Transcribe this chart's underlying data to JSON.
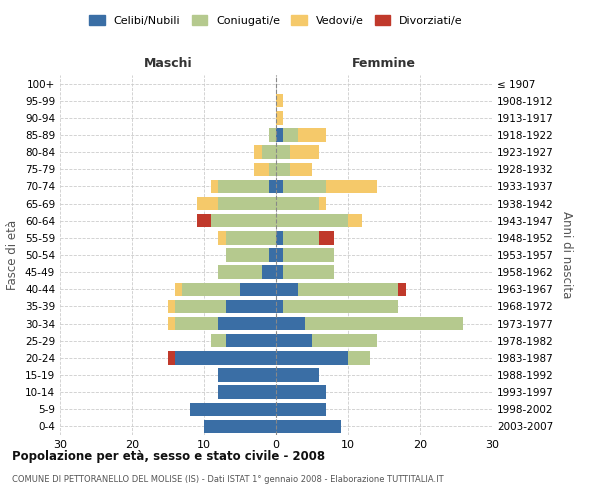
{
  "age_groups": [
    "0-4",
    "5-9",
    "10-14",
    "15-19",
    "20-24",
    "25-29",
    "30-34",
    "35-39",
    "40-44",
    "45-49",
    "50-54",
    "55-59",
    "60-64",
    "65-69",
    "70-74",
    "75-79",
    "80-84",
    "85-89",
    "90-94",
    "95-99",
    "100+"
  ],
  "birth_years": [
    "2003-2007",
    "1998-2002",
    "1993-1997",
    "1988-1992",
    "1983-1987",
    "1978-1982",
    "1973-1977",
    "1968-1972",
    "1963-1967",
    "1958-1962",
    "1953-1957",
    "1948-1952",
    "1943-1947",
    "1938-1942",
    "1933-1937",
    "1928-1932",
    "1923-1927",
    "1918-1922",
    "1913-1917",
    "1908-1912",
    "≤ 1907"
  ],
  "males": {
    "celibi": [
      10,
      12,
      8,
      8,
      14,
      7,
      8,
      7,
      5,
      2,
      1,
      0,
      0,
      0,
      1,
      0,
      0,
      0,
      0,
      0,
      0
    ],
    "coniugati": [
      0,
      0,
      0,
      0,
      0,
      2,
      6,
      7,
      8,
      6,
      6,
      7,
      9,
      8,
      7,
      1,
      2,
      1,
      0,
      0,
      0
    ],
    "vedovi": [
      0,
      0,
      0,
      0,
      0,
      0,
      1,
      1,
      1,
      0,
      0,
      1,
      0,
      3,
      1,
      2,
      1,
      0,
      0,
      0,
      0
    ],
    "divorziati": [
      0,
      0,
      0,
      0,
      1,
      0,
      0,
      0,
      0,
      0,
      0,
      0,
      2,
      0,
      0,
      0,
      0,
      0,
      0,
      0,
      0
    ]
  },
  "females": {
    "nubili": [
      9,
      7,
      7,
      6,
      10,
      5,
      4,
      1,
      3,
      1,
      1,
      1,
      0,
      0,
      1,
      0,
      0,
      1,
      0,
      0,
      0
    ],
    "coniugate": [
      0,
      0,
      0,
      0,
      3,
      9,
      22,
      16,
      14,
      7,
      7,
      5,
      10,
      6,
      6,
      2,
      2,
      2,
      0,
      0,
      0
    ],
    "vedove": [
      0,
      0,
      0,
      0,
      0,
      0,
      0,
      0,
      0,
      0,
      0,
      0,
      2,
      1,
      7,
      3,
      4,
      4,
      1,
      1,
      0
    ],
    "divorziate": [
      0,
      0,
      0,
      0,
      0,
      0,
      0,
      0,
      1,
      0,
      0,
      2,
      0,
      0,
      0,
      0,
      0,
      0,
      0,
      0,
      0
    ]
  },
  "colors": {
    "celibi": "#3a6ea5",
    "coniugati": "#b5c98e",
    "vedovi": "#f5c96a",
    "divorziati": "#c0392b"
  },
  "xlim": 30,
  "title": "Popolazione per età, sesso e stato civile - 2008",
  "subtitle": "COMUNE DI PETTORANELLO DEL MOLISE (IS) - Dati ISTAT 1° gennaio 2008 - Elaborazione TUTTITALIA.IT",
  "ylabel": "Fasce di età",
  "ylabel_right": "Anni di nascita"
}
